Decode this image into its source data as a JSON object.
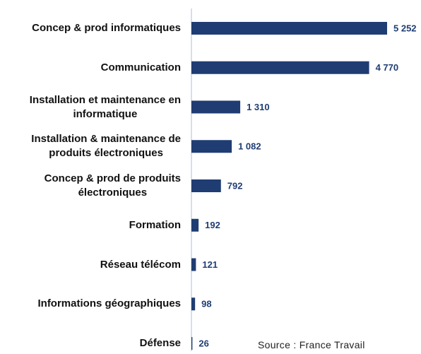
{
  "chart_data": {
    "type": "barh",
    "categories": [
      "Concep & prod informatiques",
      "Communication",
      "Installation et maintenance en\ninformatique",
      "Installation & maintenance de\nproduits électroniques",
      "Concep & prod de produits\nélectroniques",
      "Formation",
      "Réseau télécom",
      "Informations géographiques",
      "Défense"
    ],
    "values": [
      5252,
      4770,
      1310,
      1082,
      792,
      192,
      121,
      98,
      26
    ],
    "value_labels": [
      "5 252",
      "4 770",
      "1 310",
      "1 082",
      "792",
      "192",
      "121",
      "98",
      "26"
    ],
    "color": "#1f3d73",
    "source": "Source : France Travail"
  }
}
